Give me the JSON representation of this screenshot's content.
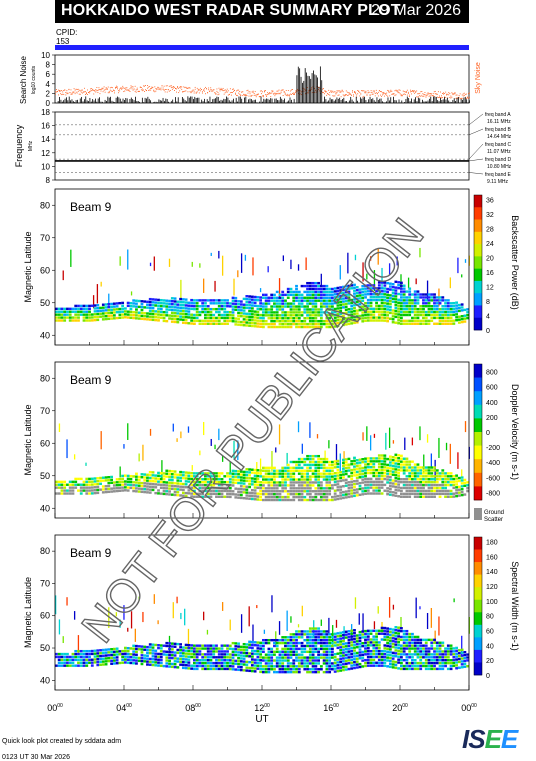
{
  "header": {
    "title": "HOKKAIDO WEST RADAR SUMMARY PLOT",
    "date": "29 Mar 2026",
    "cpid_label": "CPID:",
    "cpid_value": "153"
  },
  "watermark": "NOT FOR PUBLICATION",
  "footer": {
    "credit": "Quick look plot created by sddata adm",
    "generated": "0123 UT 30 Mar 2026"
  },
  "logo": {
    "text_a": "IS",
    "text_b": "E",
    "text_c": "E"
  },
  "colors": {
    "search_noise": "#ff6020",
    "cpid_bar": "#2020ff",
    "ground_scatter": "#909090",
    "title_bg": "#000000"
  },
  "chart_data": [
    {
      "type": "scatter",
      "panel": "search-noise",
      "ylabel": "Search Noise",
      "ylabel_sub": "log10 counts",
      "legend": "Sky Noise",
      "ylim": [
        0,
        10
      ],
      "yticks": [
        "0",
        "2",
        "4",
        "6",
        "8",
        "10"
      ],
      "x": [
        0,
        2,
        4,
        6,
        8,
        10,
        12,
        14,
        15,
        16,
        18,
        20,
        22,
        24
      ],
      "values": [
        2.2,
        2.6,
        3.0,
        3.1,
        2.8,
        2.4,
        2.0,
        2.3,
        3.0,
        2.1,
        2.0,
        2.2,
        1.9,
        1.6
      ]
    },
    {
      "type": "line",
      "panel": "frequency",
      "ylabel": "Frequency",
      "ylabel_sub": "MHz",
      "ylim": [
        8,
        18
      ],
      "yticks": [
        "8",
        "10",
        "12",
        "14",
        "16",
        "18"
      ],
      "bands": [
        {
          "label": "freq band A",
          "value": "16.11 MHz",
          "mhz": 16.11
        },
        {
          "label": "freq band B",
          "value": "14.64 MHz",
          "mhz": 14.64
        },
        {
          "label": "freq band C",
          "value": "11.07 MHz",
          "mhz": 11.07
        },
        {
          "label": "freq band D",
          "value": "10.80 MHz",
          "mhz": 10.8
        },
        {
          "label": "freq band E",
          "value": "9.11 MHz",
          "mhz": 9.11
        }
      ],
      "operating_mhz": 10.8
    },
    {
      "type": "heatmap",
      "panel": "power",
      "beam": "Beam  9",
      "ylabel": "Magnetic Latitude",
      "ylim": [
        37,
        85
      ],
      "yticks": [
        "40",
        "50",
        "60",
        "70",
        "80"
      ],
      "colorbar_label": "Backscatter Power (dB)",
      "colorbar_ticks": [
        "0",
        "4",
        "8",
        "12",
        "16",
        "20",
        "24",
        "28",
        "32",
        "36"
      ],
      "colors": [
        "#0000c8",
        "#1e1eff",
        "#00a0ff",
        "#00d2d2",
        "#00c800",
        "#78e600",
        "#d2f000",
        "#ffd200",
        "#ff8c00",
        "#ff3c00",
        "#c80000"
      ],
      "profile_hours": [
        0,
        2,
        4,
        6,
        8,
        10,
        12,
        13,
        14,
        15,
        16,
        17,
        18,
        19,
        20,
        21,
        22,
        23,
        24
      ],
      "lower_lat": [
        44,
        44,
        45,
        44,
        43,
        43,
        42,
        42,
        42,
        42,
        42,
        43,
        44,
        44,
        43,
        43,
        43,
        43,
        44
      ],
      "upper_lat": [
        48,
        49,
        50,
        51,
        51,
        51,
        52,
        53,
        55,
        56,
        54,
        55,
        55,
        56,
        56,
        53,
        52,
        50,
        48
      ],
      "sparse_top_lat": 67
    },
    {
      "type": "heatmap",
      "panel": "velocity",
      "beam": "Beam  9",
      "ylabel": "Magnetic Latitude",
      "ylim": [
        37,
        85
      ],
      "yticks": [
        "40",
        "50",
        "60",
        "70",
        "80"
      ],
      "colorbar_label": "Doppler Velocity (m s-1)",
      "colorbar_ticks": [
        "800",
        "600",
        "400",
        "200",
        "0",
        "-200",
        "-400",
        "-600",
        "-800"
      ],
      "colors": [
        "#0000c8",
        "#0050ff",
        "#00a0ff",
        "#00dcb4",
        "#00c800",
        "#b4f000",
        "#ffff00",
        "#ffb400",
        "#ff6400",
        "#dc0000"
      ],
      "ground_scatter_label": "Ground Scatter",
      "profile_hours": [
        0,
        2,
        4,
        6,
        8,
        10,
        12,
        13,
        14,
        15,
        16,
        17,
        18,
        19,
        20,
        21,
        22,
        23,
        24
      ],
      "lower_lat": [
        44,
        44,
        45,
        44,
        43,
        43,
        42,
        42,
        42,
        42,
        42,
        43,
        44,
        44,
        43,
        43,
        43,
        43,
        44
      ],
      "upper_lat": [
        48,
        49,
        50,
        51,
        51,
        51,
        52,
        53,
        55,
        56,
        54,
        55,
        55,
        56,
        56,
        53,
        52,
        50,
        48
      ],
      "sparse_top_lat": 67
    },
    {
      "type": "heatmap",
      "panel": "width",
      "beam": "Beam  9",
      "ylabel": "Magnetic Latitude",
      "xlabel": "UT",
      "ylim": [
        37,
        85
      ],
      "yticks": [
        "40",
        "50",
        "60",
        "70",
        "80"
      ],
      "xticks": [
        "00",
        "04",
        "08",
        "12",
        "16",
        "20",
        "00"
      ],
      "xtick_hours": [
        0,
        4,
        8,
        12,
        16,
        20,
        24
      ],
      "colorbar_label": "Spectral Width (m s-1)",
      "colorbar_ticks": [
        "0",
        "20",
        "40",
        "60",
        "80",
        "100",
        "120",
        "140",
        "160",
        "180"
      ],
      "colors": [
        "#0000c8",
        "#1e1eff",
        "#00a0ff",
        "#00d2d2",
        "#00c800",
        "#78e600",
        "#d2f000",
        "#ffd200",
        "#ff8c00",
        "#ff3c00",
        "#c80000"
      ],
      "profile_hours": [
        0,
        2,
        4,
        6,
        8,
        10,
        12,
        13,
        14,
        15,
        16,
        17,
        18,
        19,
        20,
        21,
        22,
        23,
        24
      ],
      "lower_lat": [
        44,
        44,
        45,
        44,
        43,
        43,
        42,
        42,
        42,
        42,
        42,
        43,
        44,
        44,
        43,
        43,
        43,
        43,
        44
      ],
      "upper_lat": [
        48,
        49,
        50,
        51,
        51,
        51,
        52,
        53,
        55,
        56,
        54,
        55,
        55,
        56,
        56,
        53,
        52,
        50,
        48
      ],
      "sparse_top_lat": 67
    }
  ]
}
